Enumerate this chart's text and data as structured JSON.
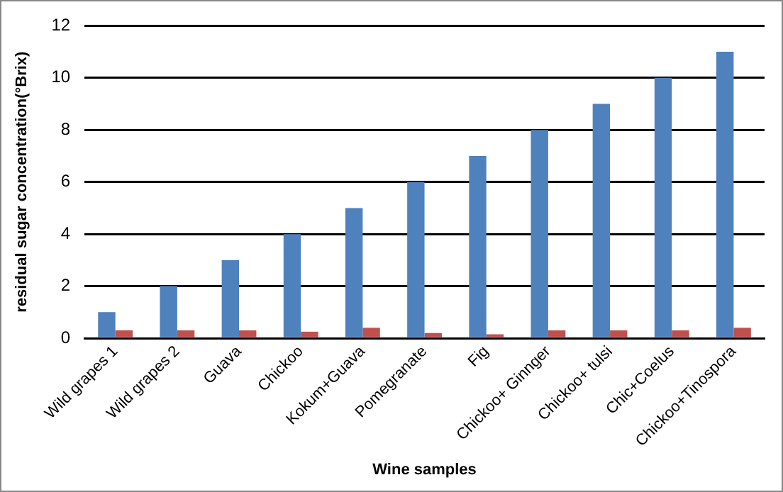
{
  "chart_data": {
    "type": "bar",
    "xlabel": "Wine samples",
    "ylabel": "residual sugar concentration(°Brix)",
    "categories": [
      "Wild grapes 1",
      "Wild grapes 2",
      "Guava",
      "Chickoo",
      "Kokum+Guava",
      "Pomegranate",
      "Fig",
      "Chickoo+ Ginnger",
      "Chickoo+ tulsi",
      "Chic+Coelus",
      "Chickoo+Tinospora"
    ],
    "series": [
      {
        "color": "#4f81bd",
        "values": [
          1,
          2,
          3,
          4,
          5,
          6,
          7,
          8,
          9,
          10,
          11
        ]
      },
      {
        "color": "#c0504d",
        "values": [
          0.3,
          0.3,
          0.3,
          0.25,
          0.4,
          0.2,
          0.15,
          0.3,
          0.3,
          0.3,
          0.4
        ]
      }
    ],
    "ylim": [
      0,
      12
    ],
    "yticks": [
      0,
      2,
      4,
      6,
      8,
      10,
      12
    ],
    "grid": "y",
    "legend": false
  }
}
